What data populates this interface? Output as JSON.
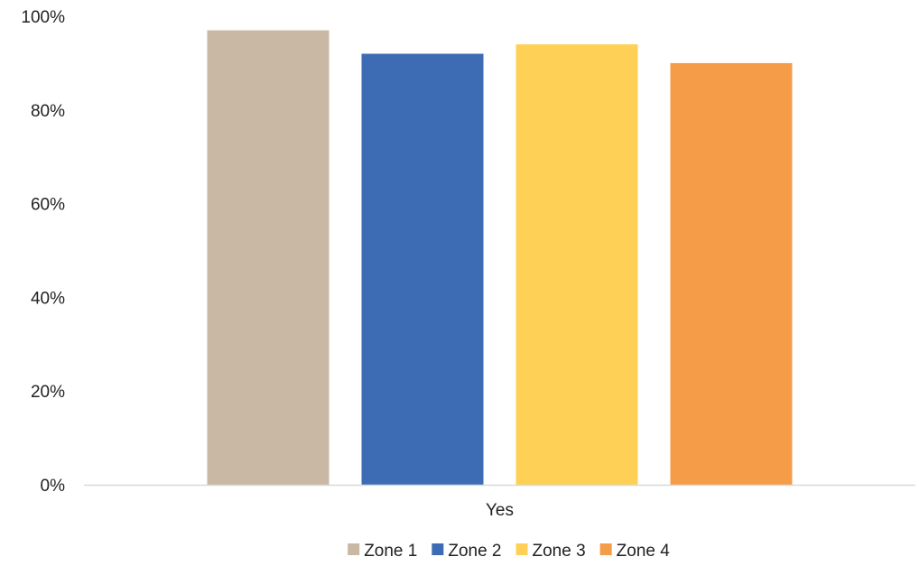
{
  "chart_data": {
    "type": "bar",
    "categories": [
      "Yes"
    ],
    "series": [
      {
        "name": "Zone 1",
        "values": [
          97
        ],
        "color": "#C9B8A4"
      },
      {
        "name": "Zone 2",
        "values": [
          92
        ],
        "color": "#3E6CB4"
      },
      {
        "name": "Zone 3",
        "values": [
          94
        ],
        "color": "#FED055"
      },
      {
        "name": "Zone 4",
        "values": [
          90
        ],
        "color": "#F49C47"
      }
    ],
    "y_unit": "%",
    "ylim": [
      0,
      100
    ],
    "yticks": [
      "0%",
      "20%",
      "40%",
      "60%",
      "80%",
      "100%"
    ],
    "ytick_values": [
      0,
      20,
      40,
      60,
      80,
      100
    ],
    "grid": false,
    "legend_position": "bottom",
    "axis_color": "#D9D9D9"
  }
}
